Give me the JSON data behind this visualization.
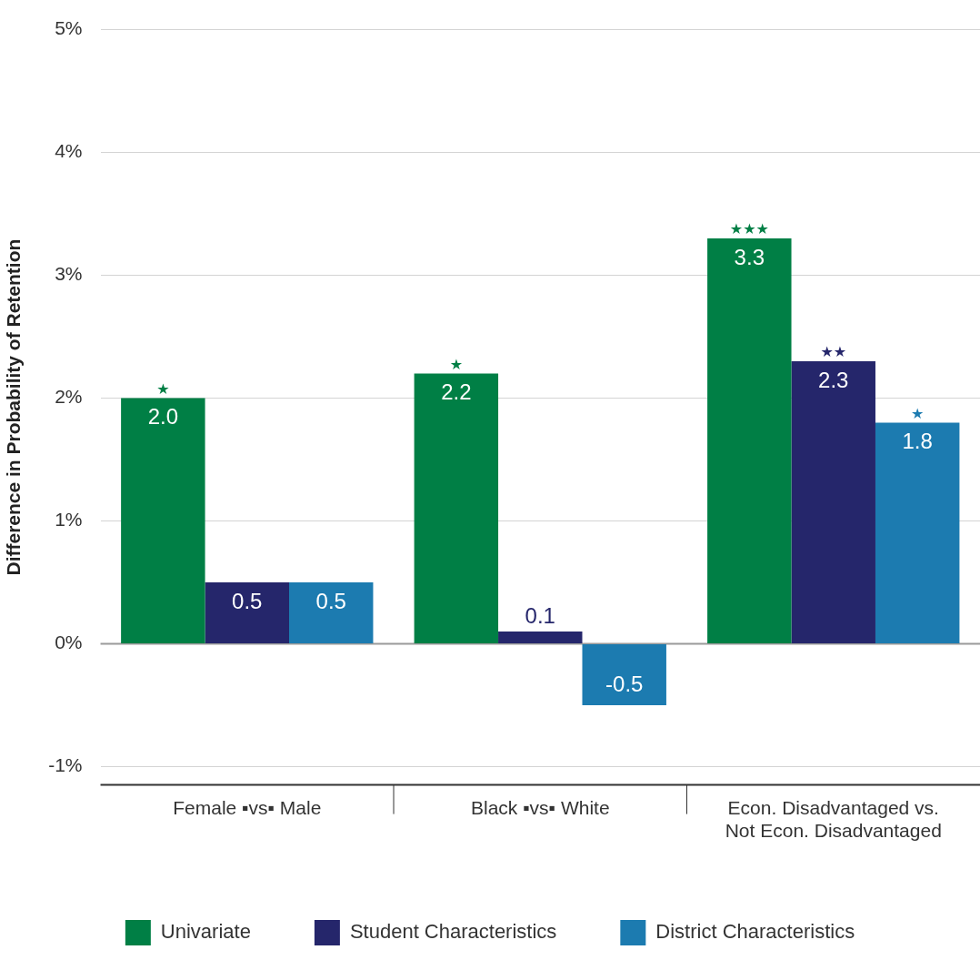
{
  "chart_data": {
    "type": "bar",
    "ylabel": "Difference in Probability of Retention",
    "categories": [
      "Female ▪vs▪ Male",
      "Black ▪vs▪ White",
      "Econ. Disadvantaged vs.\nNot Econ. Disadvantaged"
    ],
    "series": [
      {
        "name": "Univariate",
        "color": "#007f45",
        "values": [
          2.0,
          2.2,
          3.3
        ],
        "value_labels": [
          "2.0",
          "2.2",
          "3.3"
        ]
      },
      {
        "name": "Student Characteristics",
        "color": "#25266b",
        "values": [
          0.5,
          0.1,
          2.3
        ],
        "value_labels": [
          "0.5",
          "0.1",
          "2.3"
        ]
      },
      {
        "name": "District Characteristics",
        "color": "#1c7bb0",
        "values": [
          0.5,
          -0.5,
          1.8
        ],
        "value_labels": [
          "0.5",
          "-0.5",
          "1.8"
        ]
      }
    ],
    "ylim": [
      -1.15,
      5
    ],
    "yticks": [
      {
        "value": -1,
        "label": "-1%"
      },
      {
        "value": 0,
        "label": "0%"
      },
      {
        "value": 1,
        "label": "1%"
      },
      {
        "value": 2,
        "label": "2%"
      },
      {
        "value": 3,
        "label": "3%"
      },
      {
        "value": 4,
        "label": "4%"
      },
      {
        "value": 5,
        "label": "5%"
      }
    ],
    "grid": "y",
    "legend": "bottom",
    "annotations": [
      {
        "text": "★",
        "y": 2.0
      },
      {
        "text": "★",
        "y": 2.2
      },
      {
        "text": "★★★",
        "y": 3.3
      },
      {
        "text": "★★",
        "y": 2.3
      },
      {
        "text": "★",
        "y": 1.8
      }
    ]
  }
}
